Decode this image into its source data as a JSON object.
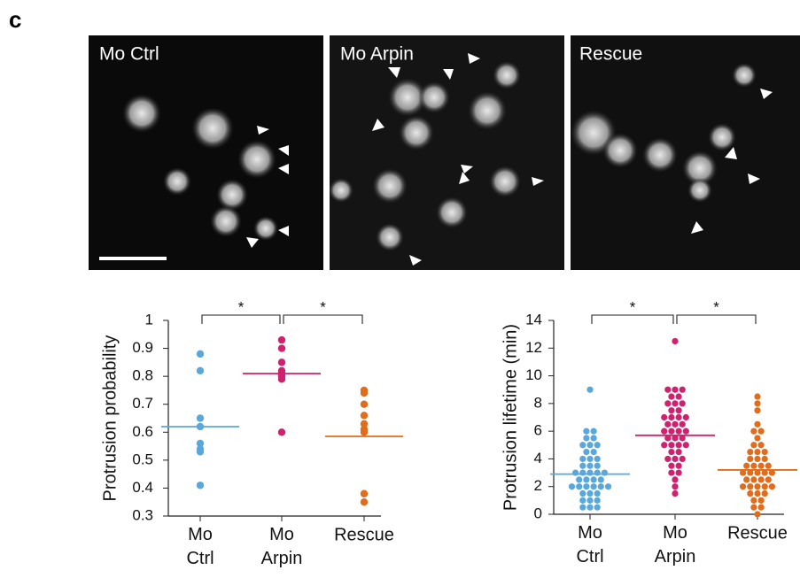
{
  "panel_label": "c",
  "images": [
    {
      "label": "Mo Ctrl"
    },
    {
      "label": "Mo Arpin"
    },
    {
      "label": "Rescue"
    }
  ],
  "chart_data": [
    {
      "type": "strip",
      "ylabel": "Protrusion probability",
      "ylim": [
        0.3,
        1
      ],
      "yticks": [
        0.3,
        0.4,
        0.5,
        0.6,
        0.7,
        0.8,
        0.9,
        1
      ],
      "series": [
        {
          "name": "Mo Ctrl",
          "color": "#5aa7dc",
          "values": [
            0.88,
            0.82,
            0.65,
            0.62,
            0.56,
            0.54,
            0.53,
            0.41
          ],
          "mean": 0.62
        },
        {
          "name": "Mo Arpin",
          "color": "#d0216e",
          "values": [
            0.93,
            0.9,
            0.85,
            0.82,
            0.8,
            0.81,
            0.79,
            0.6
          ],
          "mean": 0.81
        },
        {
          "name": "Rescue",
          "color": "#e06c1d",
          "values": [
            0.75,
            0.74,
            0.7,
            0.66,
            0.63,
            0.61,
            0.6,
            0.38,
            0.35
          ],
          "mean": 0.585
        }
      ],
      "annotations": [
        {
          "from": 0,
          "to": 1,
          "label": "*"
        },
        {
          "from": 1,
          "to": 2,
          "label": "*"
        }
      ]
    },
    {
      "type": "strip",
      "ylabel": "Protrusion lifetime (min)",
      "ylim": [
        0,
        14
      ],
      "yticks": [
        0,
        2,
        4,
        6,
        8,
        10,
        12,
        14
      ],
      "series": [
        {
          "name": "Mo Ctrl",
          "color": "#5aa7dc",
          "values": [
            9,
            6,
            6,
            5.5,
            5.5,
            5,
            5,
            5,
            4.5,
            4.5,
            4,
            4,
            4,
            3.5,
            3.5,
            3.5,
            3,
            3,
            3,
            3,
            3,
            2.5,
            2.5,
            2.5,
            2.5,
            2,
            2,
            2,
            2,
            2,
            2,
            1.5,
            1.5,
            1.5,
            1,
            1,
            1,
            0.5,
            0.5,
            0.5
          ],
          "mean": 2.9
        },
        {
          "name": "Mo Arpin",
          "color": "#d0216e",
          "values": [
            12.5,
            9,
            9,
            9,
            8.5,
            8.5,
            8,
            8,
            8,
            7.5,
            7.5,
            7,
            7,
            7,
            7,
            6.5,
            6.5,
            6.5,
            6,
            6,
            6,
            6,
            5.5,
            5.5,
            5.5,
            5,
            5,
            5,
            5,
            4.5,
            4.5,
            4,
            4,
            4,
            3.5,
            3.5,
            3,
            3,
            2.5,
            2,
            1.5
          ],
          "mean": 5.7
        },
        {
          "name": "Rescue",
          "color": "#e06c1d",
          "values": [
            8.5,
            8,
            7.5,
            6.5,
            6,
            6,
            5.5,
            5,
            5,
            4.5,
            4.5,
            4.5,
            4,
            4,
            4,
            3.5,
            3.5,
            3.5,
            3.5,
            3,
            3,
            3,
            3,
            3,
            2.5,
            2.5,
            2.5,
            2.5,
            2,
            2,
            2,
            2,
            2,
            1.5,
            1.5,
            1.5,
            1,
            1,
            0.5,
            0.5,
            0
          ],
          "mean": 3.2
        }
      ],
      "annotations": [
        {
          "from": 0,
          "to": 1,
          "label": "*"
        },
        {
          "from": 1,
          "to": 2,
          "label": "*"
        }
      ]
    }
  ]
}
